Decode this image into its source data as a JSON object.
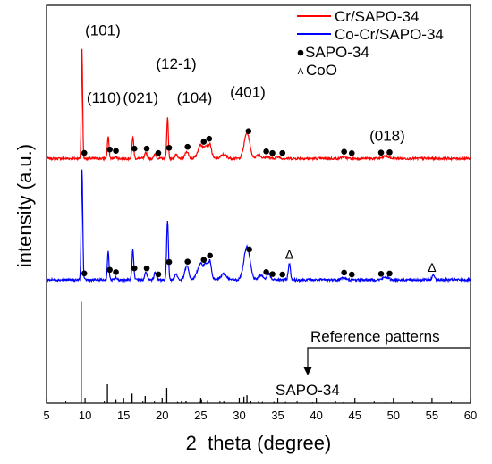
{
  "chart_data": {
    "type": "line",
    "xlabel": "2  theta (degree)",
    "ylabel": "intensity (a.u.)",
    "xlim": [
      5,
      60
    ],
    "x_ticks": [
      5,
      10,
      15,
      20,
      25,
      30,
      35,
      40,
      45,
      50,
      55,
      60
    ],
    "y_ticks_shown": false,
    "series": [
      {
        "name": "Cr/SAPO-34",
        "color": "#ff0000",
        "baseline": 0.615,
        "peaks": [
          {
            "x": 9.6,
            "h": 0.275,
            "w": 0.12
          },
          {
            "x": 13.0,
            "h": 0.055,
            "w": 0.15
          },
          {
            "x": 14.0,
            "h": 0.006,
            "w": 0.15
          },
          {
            "x": 16.2,
            "h": 0.055,
            "w": 0.16
          },
          {
            "x": 17.9,
            "h": 0.015,
            "w": 0.2
          },
          {
            "x": 19.1,
            "h": 0.012,
            "w": 0.2
          },
          {
            "x": 20.7,
            "h": 0.105,
            "w": 0.14
          },
          {
            "x": 21.8,
            "h": 0.01,
            "w": 0.2
          },
          {
            "x": 23.2,
            "h": 0.018,
            "w": 0.3
          },
          {
            "x": 25.0,
            "h": 0.035,
            "w": 0.5
          },
          {
            "x": 25.7,
            "h": 0.028,
            "w": 0.3
          },
          {
            "x": 26.2,
            "h": 0.035,
            "w": 0.3
          },
          {
            "x": 28.0,
            "h": 0.01,
            "w": 0.5
          },
          {
            "x": 31.0,
            "h": 0.065,
            "w": 0.5
          },
          {
            "x": 32.5,
            "h": 0.01,
            "w": 0.4
          },
          {
            "x": 33.6,
            "h": 0.005,
            "w": 0.3
          },
          {
            "x": 35.0,
            "h": 0.004,
            "w": 0.4
          },
          {
            "x": 43.5,
            "h": 0.004,
            "w": 0.4
          },
          {
            "x": 49.0,
            "h": 0.006,
            "w": 0.5
          }
        ],
        "markers": [
          9.9,
          13.2,
          14.0,
          16.4,
          18.0,
          19.5,
          20.9,
          23.3,
          25.4,
          26.1,
          31.2,
          33.5,
          34.3,
          35.6,
          43.6,
          44.6,
          48.4,
          49.5
        ]
      },
      {
        "name": "Co-Cr/SAPO-34",
        "color": "#0000ff",
        "baseline": 0.31,
        "peaks": [
          {
            "x": 9.6,
            "h": 0.28,
            "w": 0.14
          },
          {
            "x": 13.0,
            "h": 0.07,
            "w": 0.15
          },
          {
            "x": 14.0,
            "h": 0.006,
            "w": 0.15
          },
          {
            "x": 16.2,
            "h": 0.075,
            "w": 0.16
          },
          {
            "x": 17.9,
            "h": 0.02,
            "w": 0.2
          },
          {
            "x": 19.1,
            "h": 0.02,
            "w": 0.2
          },
          {
            "x": 20.7,
            "h": 0.15,
            "w": 0.16
          },
          {
            "x": 21.8,
            "h": 0.015,
            "w": 0.25
          },
          {
            "x": 23.2,
            "h": 0.035,
            "w": 0.35
          },
          {
            "x": 25.0,
            "h": 0.04,
            "w": 0.6
          },
          {
            "x": 25.7,
            "h": 0.03,
            "w": 0.3
          },
          {
            "x": 26.2,
            "h": 0.045,
            "w": 0.3
          },
          {
            "x": 28.0,
            "h": 0.015,
            "w": 0.5
          },
          {
            "x": 31.0,
            "h": 0.085,
            "w": 0.55
          },
          {
            "x": 32.8,
            "h": 0.012,
            "w": 0.4
          },
          {
            "x": 33.8,
            "h": 0.015,
            "w": 0.3
          },
          {
            "x": 36.5,
            "h": 0.04,
            "w": 0.2
          },
          {
            "x": 43.5,
            "h": 0.005,
            "w": 0.4
          },
          {
            "x": 49.0,
            "h": 0.007,
            "w": 0.5
          },
          {
            "x": 55.2,
            "h": 0.012,
            "w": 0.25
          }
        ],
        "markers": [
          9.9,
          13.2,
          14.0,
          16.4,
          18.0,
          19.5,
          20.9,
          23.3,
          25.4,
          26.2,
          31.3,
          33.5,
          34.3,
          35.6,
          43.6,
          44.6,
          48.4,
          49.5
        ],
        "delta_markers": [
          36.5,
          55.0
        ]
      }
    ],
    "reference": {
      "name": "SAPO-34",
      "sticks": [
        {
          "x": 9.5,
          "h": 0.255
        },
        {
          "x": 12.9,
          "h": 0.048
        },
        {
          "x": 14.0,
          "h": 0.01
        },
        {
          "x": 16.1,
          "h": 0.024
        },
        {
          "x": 17.8,
          "h": 0.018
        },
        {
          "x": 19.0,
          "h": 0.004
        },
        {
          "x": 20.6,
          "h": 0.038
        },
        {
          "x": 22.0,
          "h": 0.003
        },
        {
          "x": 23.1,
          "h": 0.006
        },
        {
          "x": 24.8,
          "h": 0.004
        },
        {
          "x": 25.1,
          "h": 0.01
        },
        {
          "x": 25.9,
          "h": 0.008
        },
        {
          "x": 28.0,
          "h": 0.004
        },
        {
          "x": 30.6,
          "h": 0.016
        },
        {
          "x": 31.0,
          "h": 0.02
        },
        {
          "x": 31.5,
          "h": 0.006
        },
        {
          "x": 33.0,
          "h": 0.003
        },
        {
          "x": 34.5,
          "h": 0.003
        },
        {
          "x": 36.0,
          "h": 0.003
        },
        {
          "x": 39.5,
          "h": 0.002
        },
        {
          "x": 43.5,
          "h": 0.002
        },
        {
          "x": 49.0,
          "h": 0.002
        }
      ]
    },
    "annotations": [
      {
        "text": "(101)",
        "x": 10.0,
        "y": 0.925
      },
      {
        "text": "(110)",
        "x": 10.2,
        "y": 0.755
      },
      {
        "text": "(021)",
        "x": 14.9,
        "y": 0.755
      },
      {
        "text": "(12-1)",
        "x": 19.2,
        "y": 0.84
      },
      {
        "text": "(104)",
        "x": 21.9,
        "y": 0.755
      },
      {
        "text": "(401)",
        "x": 28.8,
        "y": 0.77
      },
      {
        "text": "(018)",
        "x": 46.9,
        "y": 0.66
      }
    ],
    "legend": {
      "position": "top-right",
      "items": [
        {
          "label": "Cr/SAPO-34",
          "symbol": "line",
          "color": "#ff0000"
        },
        {
          "label": "Co-Cr/SAPO-34",
          "symbol": "line",
          "color": "#0000ff"
        },
        {
          "label": "SAPO-34",
          "symbol": "dot",
          "color": "#000000"
        },
        {
          "label": "CoO",
          "symbol": "delta",
          "color": "#000000"
        }
      ]
    },
    "callouts": {
      "reference_label": "Reference patterns",
      "sapo_label": "SAPO-34"
    }
  }
}
